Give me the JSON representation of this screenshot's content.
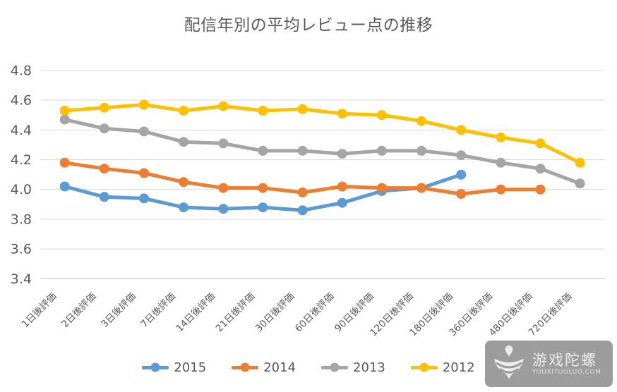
{
  "title": "配信年別の平均レビュー点の推移",
  "chart_data": {
    "type": "line",
    "title": "配信年別の平均レビュー点の推移",
    "xlabel": "",
    "ylabel": "",
    "categories": [
      "1日後評価",
      "2日後評価",
      "3日後評価",
      "7日後評価",
      "14日後評価",
      "21日後評価",
      "30日後評価",
      "60日後評価",
      "90日後評価",
      "120日後評価",
      "180日後評価",
      "360日後評価",
      "480日後評価",
      "720日後評価"
    ],
    "series": [
      {
        "name": "2015",
        "color": "#5B9BD5",
        "values": [
          4.02,
          3.95,
          3.94,
          3.88,
          3.87,
          3.88,
          3.86,
          3.91,
          3.99,
          4.01,
          4.1,
          null,
          null,
          null
        ]
      },
      {
        "name": "2014",
        "color": "#ED7D31",
        "values": [
          4.18,
          4.14,
          4.11,
          4.05,
          4.01,
          4.01,
          3.98,
          4.02,
          4.01,
          4.01,
          3.97,
          4.0,
          4.0,
          null
        ]
      },
      {
        "name": "2013",
        "color": "#A5A5A5",
        "values": [
          4.47,
          4.41,
          4.39,
          4.32,
          4.31,
          4.26,
          4.26,
          4.24,
          4.26,
          4.26,
          4.23,
          4.18,
          4.14,
          4.04
        ]
      },
      {
        "name": "2012",
        "color": "#FFC000",
        "values": [
          4.53,
          4.55,
          4.57,
          4.53,
          4.56,
          4.53,
          4.54,
          4.51,
          4.5,
          4.46,
          4.4,
          4.35,
          4.31,
          4.18
        ]
      }
    ],
    "ylim": [
      3.4,
      4.8
    ],
    "ytick_step": 0.2,
    "yticks": [
      "4.8",
      "4.6",
      "4.4",
      "4.2",
      "4.0",
      "3.8",
      "3.6",
      "3.4"
    ],
    "grid": true,
    "legend_position": "bottom",
    "legend_entries": [
      "2015",
      "2014",
      "2013",
      "2012"
    ],
    "grid_color": "#D9D9D9",
    "axis_color": "#BFBFBF",
    "label_color": "#595959",
    "title_color": "#595959"
  },
  "watermark": {
    "brand": "游戏陀螺",
    "domain": "YOUXITUOLUO.COM"
  }
}
